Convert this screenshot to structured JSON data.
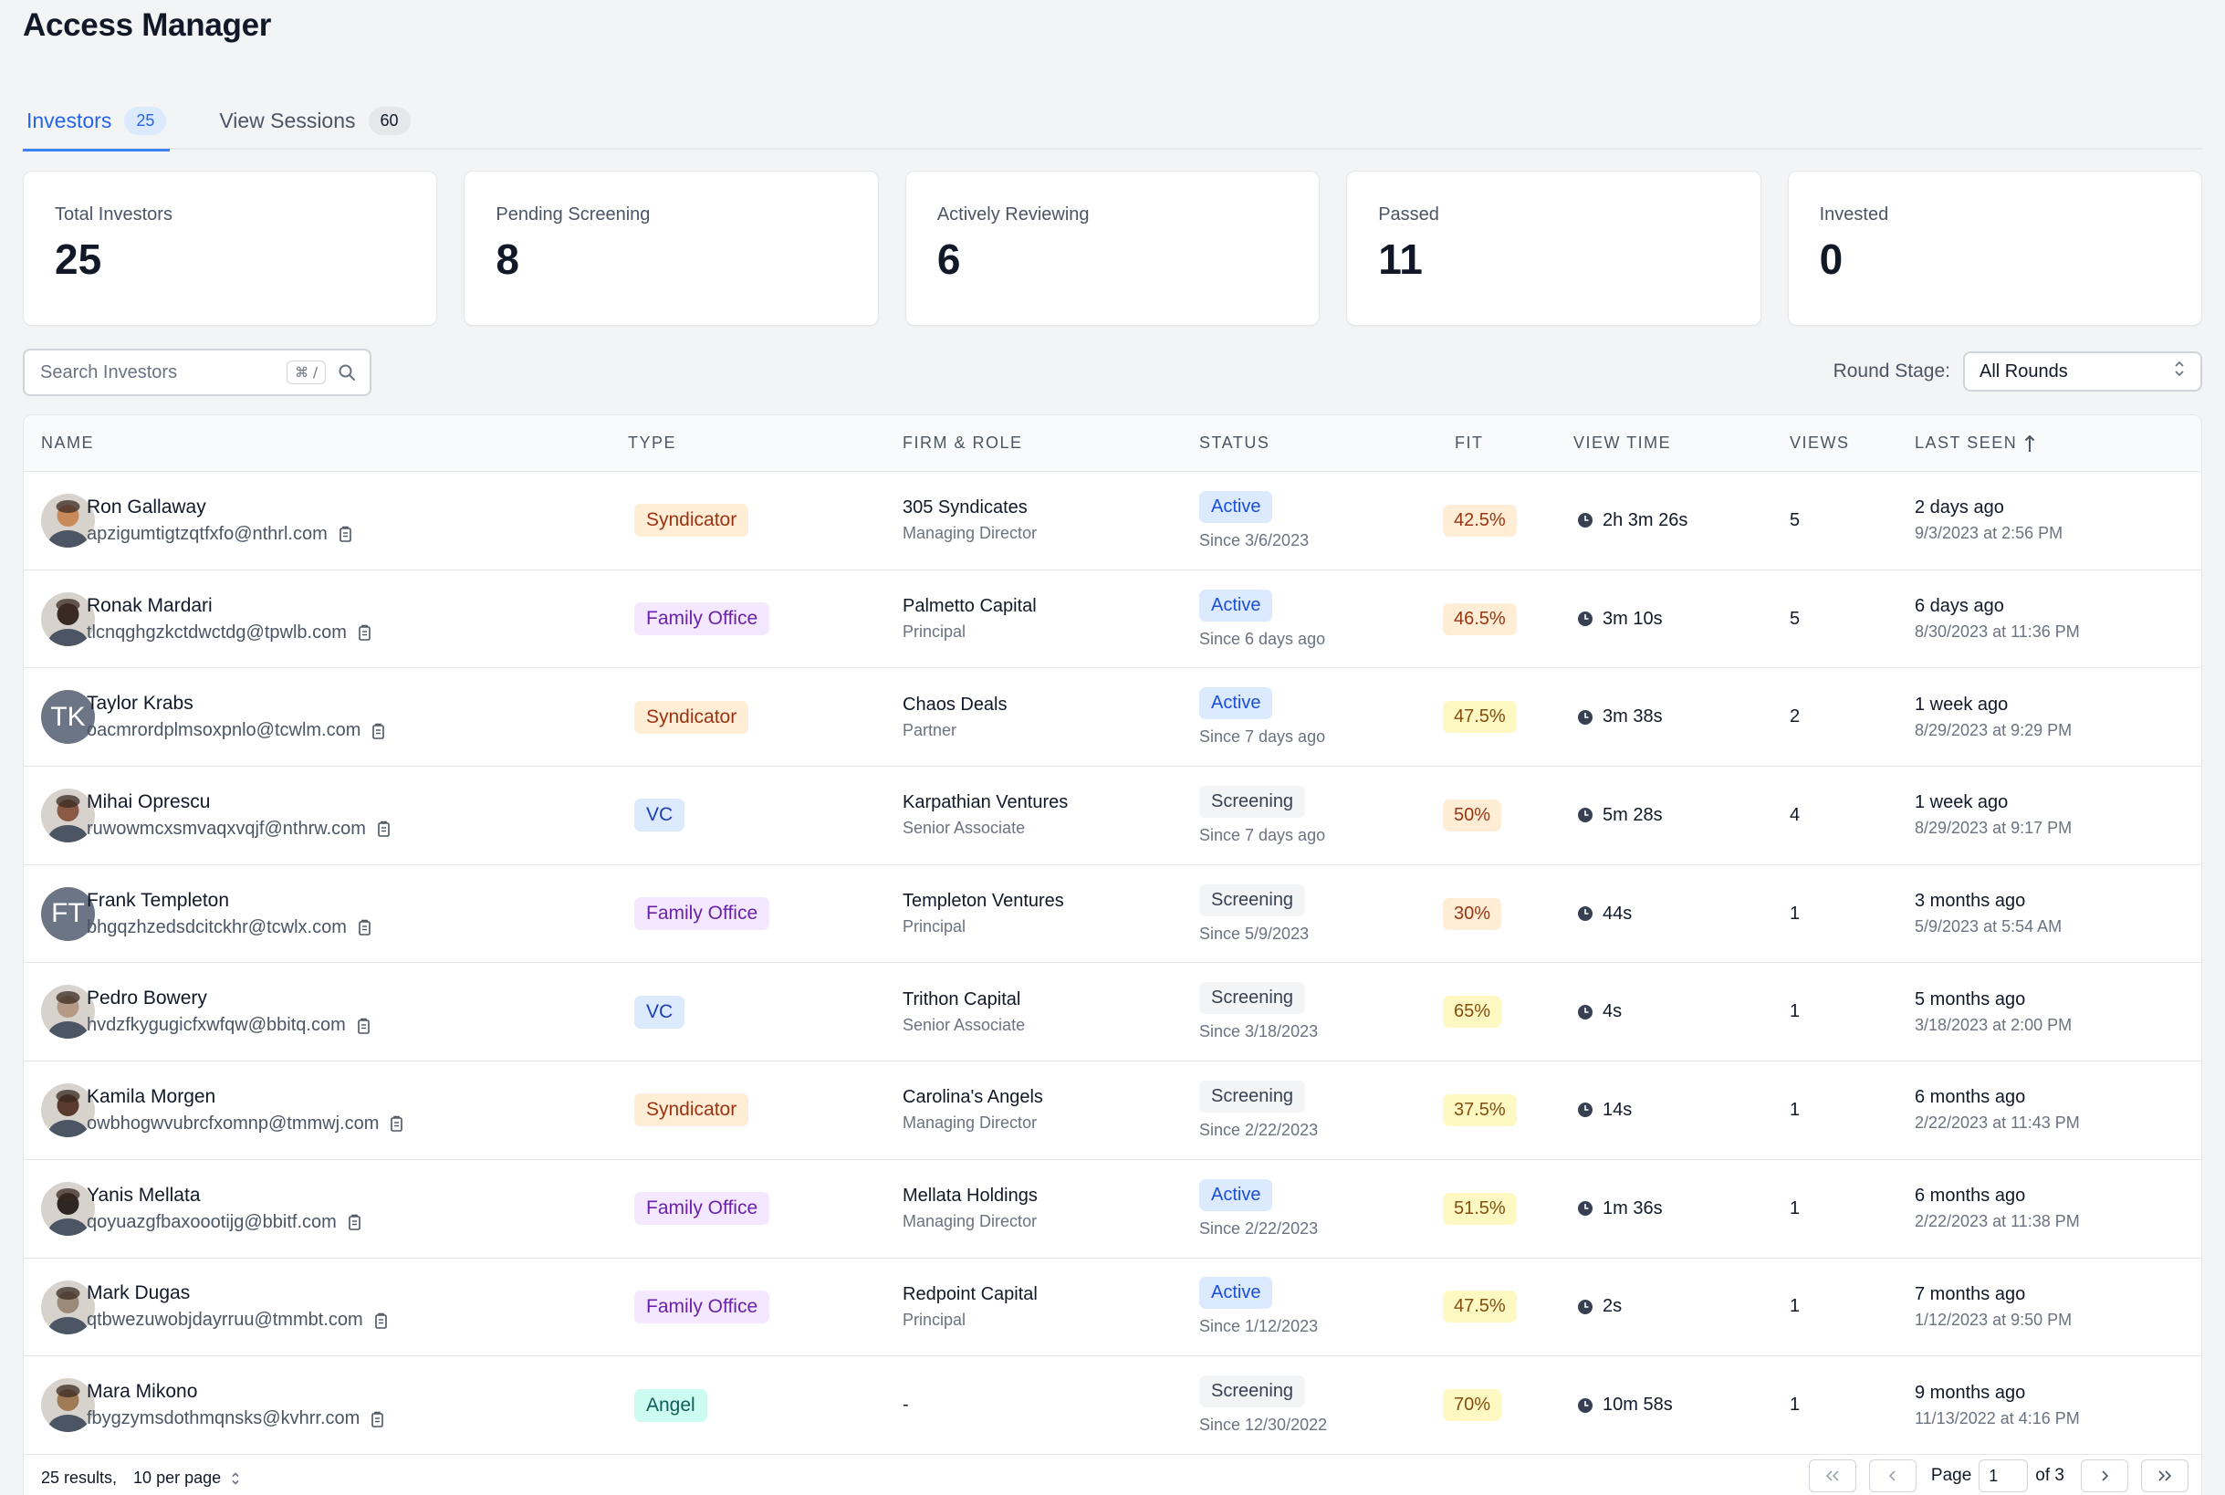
{
  "page_title": "Access Manager",
  "tabs": [
    {
      "label": "Investors",
      "count": "25",
      "active": true
    },
    {
      "label": "View Sessions",
      "count": "60",
      "active": false
    }
  ],
  "stats": [
    {
      "label": "Total Investors",
      "value": "25"
    },
    {
      "label": "Pending Screening",
      "value": "8"
    },
    {
      "label": "Actively Reviewing",
      "value": "6"
    },
    {
      "label": "Passed",
      "value": "11"
    },
    {
      "label": "Invested",
      "value": "0"
    }
  ],
  "search": {
    "placeholder": "Search Investors",
    "shortcut": "⌘ /"
  },
  "round_stage": {
    "label": "Round Stage:",
    "value": "All Rounds"
  },
  "table": {
    "columns": [
      "NAME",
      "TYPE",
      "FIRM & ROLE",
      "STATUS",
      "FIT",
      "VIEW TIME",
      "VIEWS",
      "LAST SEEN"
    ],
    "sort_column": "LAST SEEN",
    "rows": [
      {
        "name": "Ron Gallaway",
        "email": "apzigumtigtzqtfxfo@nthrl.com",
        "avatar": "photo",
        "avatar_tone": "#c98a5a",
        "type": "Syndicator",
        "firm": "305 Syndicates",
        "role": "Managing Director",
        "status": "Active",
        "since": "Since 3/6/2023",
        "fit": "42.5%",
        "view_time": "2h 3m 26s",
        "views": "5",
        "seen_rel": "2 days ago",
        "seen_abs": "9/3/2023 at 2:56 PM"
      },
      {
        "name": "Ronak Mardari",
        "email": "tlcnqghgzkctdwctdg@tpwlb.com",
        "avatar": "photo",
        "avatar_tone": "#3a2a24",
        "type": "Family Office",
        "firm": "Palmetto Capital",
        "role": "Principal",
        "status": "Active",
        "since": "Since 6 days ago",
        "fit": "46.5%",
        "view_time": "3m 10s",
        "views": "5",
        "seen_rel": "6 days ago",
        "seen_abs": "8/30/2023 at 11:36 PM"
      },
      {
        "name": "Taylor Krabs",
        "email": "oacmrordplmsoxpnlo@tcwlm.com",
        "avatar": "TK",
        "avatar_tone": "",
        "type": "Syndicator",
        "firm": "Chaos Deals",
        "role": "Partner",
        "status": "Active",
        "since": "Since 7 days ago",
        "fit": "47.5%",
        "view_time": "3m 38s",
        "views": "2",
        "seen_rel": "1 week ago",
        "seen_abs": "8/29/2023 at 9:29 PM"
      },
      {
        "name": "Mihai Oprescu",
        "email": "ruwowmcxsmvaqxvqjf@nthrw.com",
        "avatar": "photo",
        "avatar_tone": "#8a5a44",
        "type": "VC",
        "firm": "Karpathian Ventures",
        "role": "Senior Associate",
        "status": "Screening",
        "since": "Since 7 days ago",
        "fit": "50%",
        "view_time": "5m 28s",
        "views": "4",
        "seen_rel": "1 week ago",
        "seen_abs": "8/29/2023 at 9:17 PM"
      },
      {
        "name": "Frank Templeton",
        "email": "bhgqzhzedsdcitckhr@tcwlx.com",
        "avatar": "FT",
        "avatar_tone": "",
        "type": "Family Office",
        "firm": "Templeton Ventures",
        "role": "Principal",
        "status": "Screening",
        "since": "Since 5/9/2023",
        "fit": "30%",
        "view_time": "44s",
        "views": "1",
        "seen_rel": "3 months ago",
        "seen_abs": "5/9/2023 at 5:54 AM"
      },
      {
        "name": "Pedro Bowery",
        "email": "hvdzfkygugicfxwfqw@bbitq.com",
        "avatar": "photo",
        "avatar_tone": "#b79a86",
        "type": "VC",
        "firm": "Trithon Capital",
        "role": "Senior Associate",
        "status": "Screening",
        "since": "Since 3/18/2023",
        "fit": "65%",
        "view_time": "4s",
        "views": "1",
        "seen_rel": "5 months ago",
        "seen_abs": "3/18/2023 at 2:00 PM"
      },
      {
        "name": "Kamila Morgen",
        "email": "owbhogwvubrcfxomnp@tmmwj.com",
        "avatar": "photo",
        "avatar_tone": "#5a3a2e",
        "type": "Syndicator",
        "firm": "Carolina's Angels",
        "role": "Managing Director",
        "status": "Screening",
        "since": "Since 2/22/2023",
        "fit": "37.5%",
        "view_time": "14s",
        "views": "1",
        "seen_rel": "6 months ago",
        "seen_abs": "2/22/2023 at 11:43 PM"
      },
      {
        "name": "Yanis Mellata",
        "email": "qoyuazgfbaxoootijg@bbitf.com",
        "avatar": "photo",
        "avatar_tone": "#2e2620",
        "type": "Family Office",
        "firm": "Mellata Holdings",
        "role": "Managing Director",
        "status": "Active",
        "since": "Since 2/22/2023",
        "fit": "51.5%",
        "view_time": "1m 36s",
        "views": "1",
        "seen_rel": "6 months ago",
        "seen_abs": "2/22/2023 at 11:38 PM"
      },
      {
        "name": "Mark Dugas",
        "email": "qtbwezuwobjdayrruu@tmmbt.com",
        "avatar": "photo",
        "avatar_tone": "#9c8a78",
        "type": "Family Office",
        "firm": "Redpoint Capital",
        "role": "Principal",
        "status": "Active",
        "since": "Since 1/12/2023",
        "fit": "47.5%",
        "view_time": "2s",
        "views": "1",
        "seen_rel": "7 months ago",
        "seen_abs": "1/12/2023 at 9:50 PM"
      },
      {
        "name": "Mara Mikono",
        "email": "fbygzymsdothmqnsks@kvhrr.com",
        "avatar": "photo",
        "avatar_tone": "#a07a54",
        "type": "Angel",
        "firm": "-",
        "role": "",
        "status": "Screening",
        "since": "Since 12/30/2022",
        "fit": "70%",
        "view_time": "10m 58s",
        "views": "1",
        "seen_rel": "9 months ago",
        "seen_abs": "11/13/2022 at 4:16 PM"
      }
    ]
  },
  "footer": {
    "results": "25 results,",
    "per_page": "10 per page",
    "page_label": "Page",
    "page_value": "1",
    "page_of": "of 3"
  },
  "colors": {
    "accent": "#2563eb",
    "active_status": "#1d4ed8",
    "fit_orange": "#ffedd5",
    "fit_yellow": "#fef9c3"
  }
}
